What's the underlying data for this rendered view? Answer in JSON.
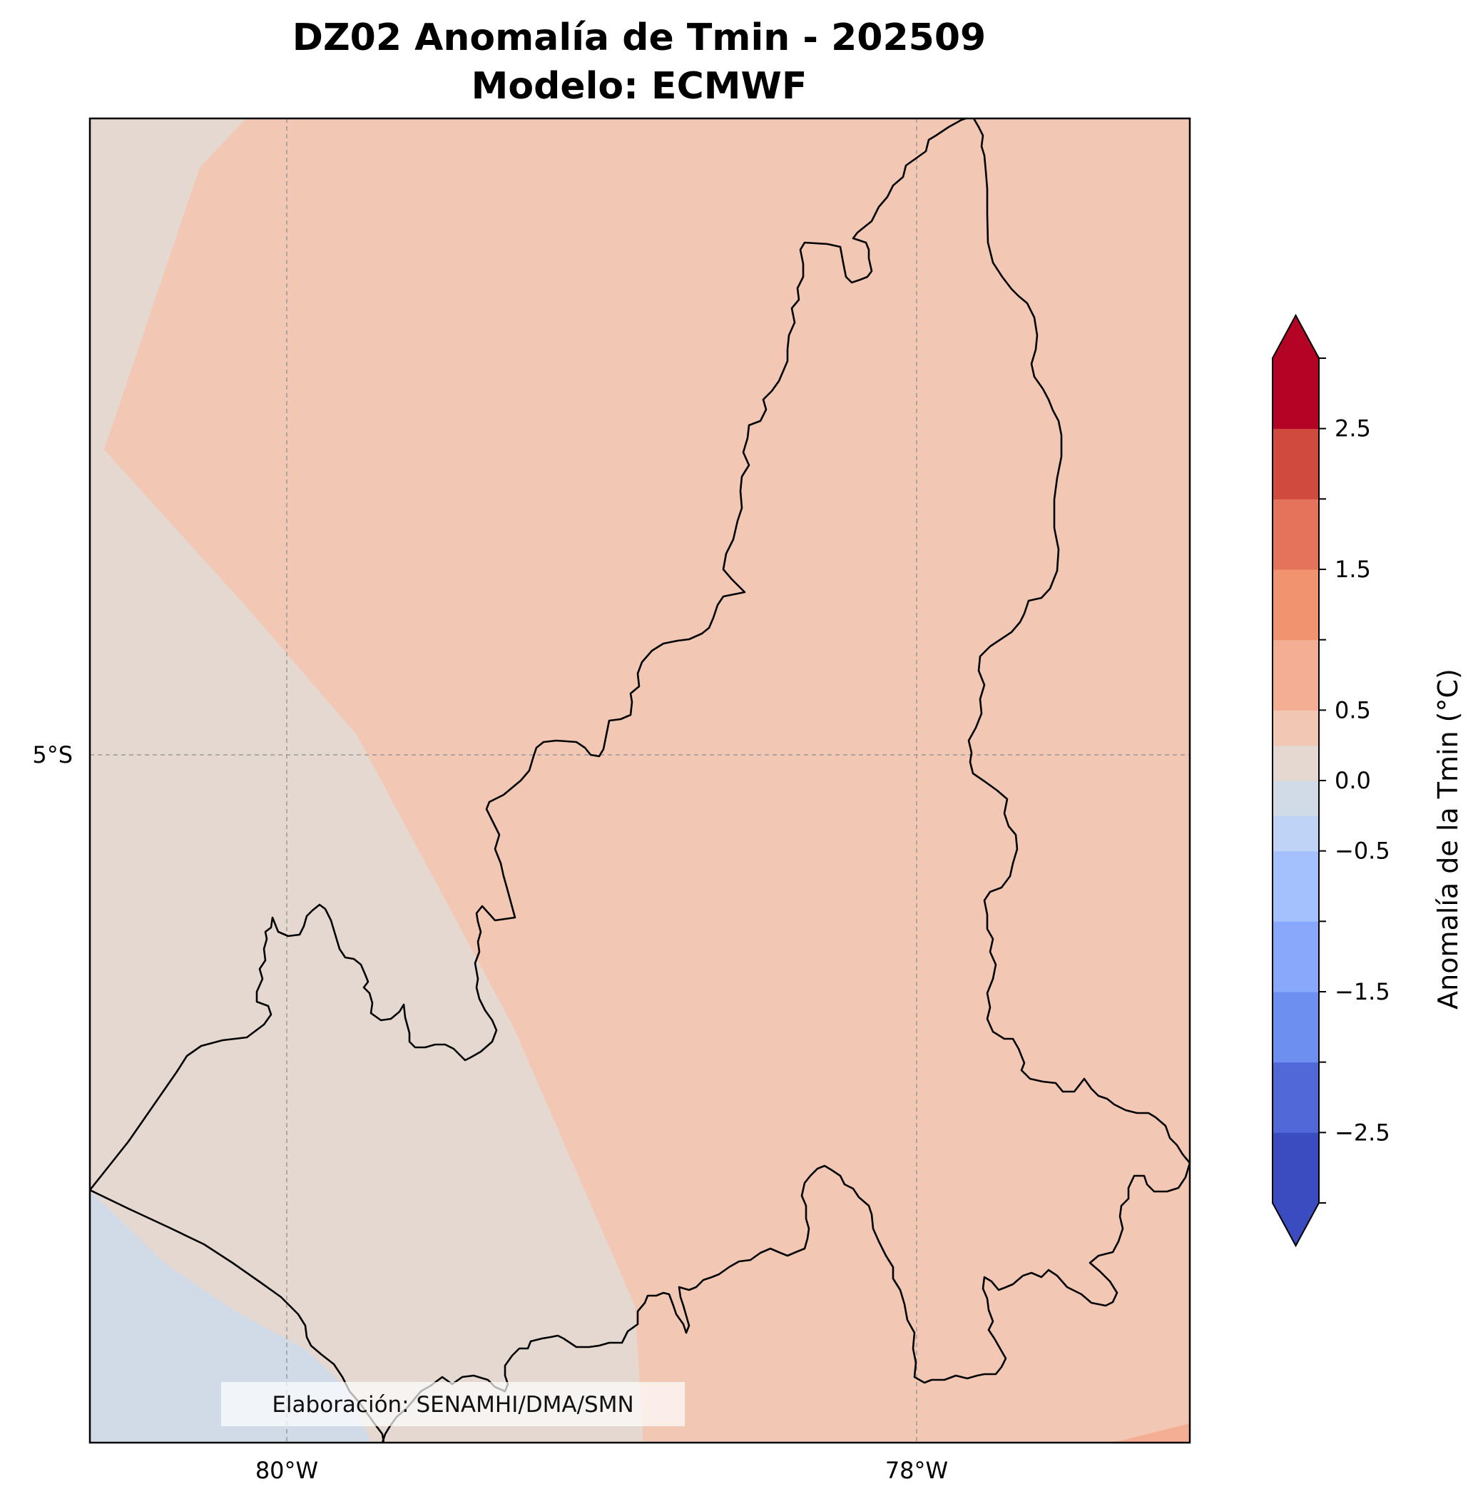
{
  "title": {
    "line1": "DZ02 Anomalía de Tmin - 202509",
    "line2": "Modelo: ECMWF"
  },
  "map": {
    "x_ticks": [
      "80°W",
      "78°W"
    ],
    "y_ticks": [
      "5°S"
    ],
    "credit": "Elaboración: SENAMHI/DMA/SMN",
    "colors": {
      "neutral": "#e5d8d0",
      "warm_light": "#f2c7b3",
      "cool_light": "#d0dbe7",
      "warm_mid": "#f4ae93",
      "border": "#000000",
      "grid": "#999999"
    }
  },
  "colorbar": {
    "label": "Anomalía de la Tmin (°C)",
    "tick_labels": [
      "2.5",
      "1.5",
      "0.5",
      "0.0",
      "−0.5",
      "−1.5",
      "−2.5"
    ],
    "range": [
      -3,
      3
    ],
    "bins": [
      {
        "from": -3.0,
        "to": -2.5,
        "color": "#3b4cc0"
      },
      {
        "from": -2.5,
        "to": -2.0,
        "color": "#5068d8"
      },
      {
        "from": -2.0,
        "to": -1.5,
        "color": "#6c8ff0"
      },
      {
        "from": -1.5,
        "to": -1.0,
        "color": "#87a8fb"
      },
      {
        "from": -1.0,
        "to": -0.5,
        "color": "#a4c1fe"
      },
      {
        "from": -0.5,
        "to": -0.25,
        "color": "#bfd3f6"
      },
      {
        "from": -0.25,
        "to": 0.0,
        "color": "#d0dbe7"
      },
      {
        "from": 0.0,
        "to": 0.25,
        "color": "#e5d8d0"
      },
      {
        "from": 0.25,
        "to": 0.5,
        "color": "#f2c7b3"
      },
      {
        "from": 0.5,
        "to": 1.0,
        "color": "#f4ae93"
      },
      {
        "from": 1.0,
        "to": 1.5,
        "color": "#f0936f"
      },
      {
        "from": 1.5,
        "to": 2.0,
        "color": "#e3735a"
      },
      {
        "from": 2.0,
        "to": 2.5,
        "color": "#d04a3d"
      },
      {
        "from": 2.5,
        "to": 3.0,
        "color": "#b40426"
      }
    ],
    "extend_low_color": "#3b4cc0",
    "extend_high_color": "#b40426"
  }
}
